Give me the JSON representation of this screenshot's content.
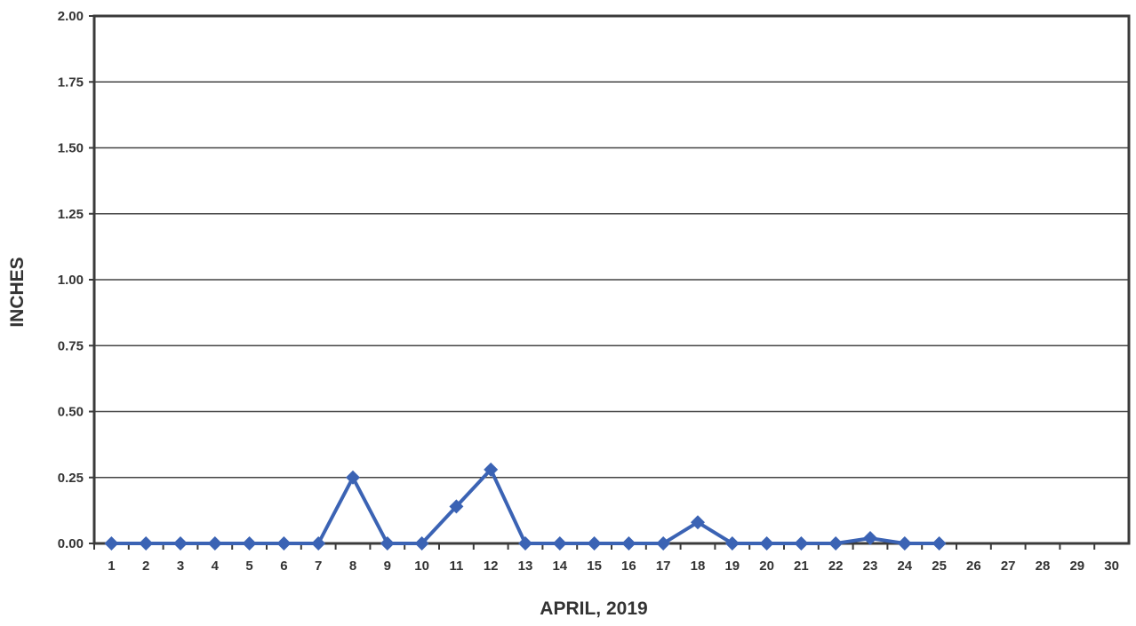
{
  "chart_data": {
    "type": "line",
    "title": "",
    "xlabel": "APRIL, 2019",
    "ylabel": "INCHES",
    "ylim": [
      0,
      2.0
    ],
    "yticks": [
      "0.00",
      "0.25",
      "0.50",
      "0.75",
      "1.00",
      "1.25",
      "1.50",
      "1.75",
      "2.00"
    ],
    "categories": [
      "1",
      "2",
      "3",
      "4",
      "5",
      "6",
      "7",
      "8",
      "9",
      "10",
      "11",
      "12",
      "13",
      "14",
      "15",
      "16",
      "17",
      "18",
      "19",
      "20",
      "21",
      "22",
      "23",
      "24",
      "25",
      "26",
      "27",
      "28",
      "29",
      "30"
    ],
    "grid": true,
    "legend": "none",
    "series": [
      {
        "color": "#3b63b4",
        "marker": "diamond",
        "x": [
          1,
          2,
          3,
          4,
          5,
          6,
          7,
          8,
          9,
          10,
          11,
          12,
          13,
          14,
          15,
          16,
          17,
          18,
          19,
          20,
          21,
          22,
          23,
          24,
          25
        ],
        "values": [
          0,
          0,
          0,
          0,
          0,
          0,
          0,
          0.25,
          0,
          0,
          0.14,
          0.28,
          0,
          0,
          0,
          0,
          0,
          0.08,
          0,
          0,
          0,
          0,
          0.02,
          0,
          0
        ]
      }
    ]
  }
}
